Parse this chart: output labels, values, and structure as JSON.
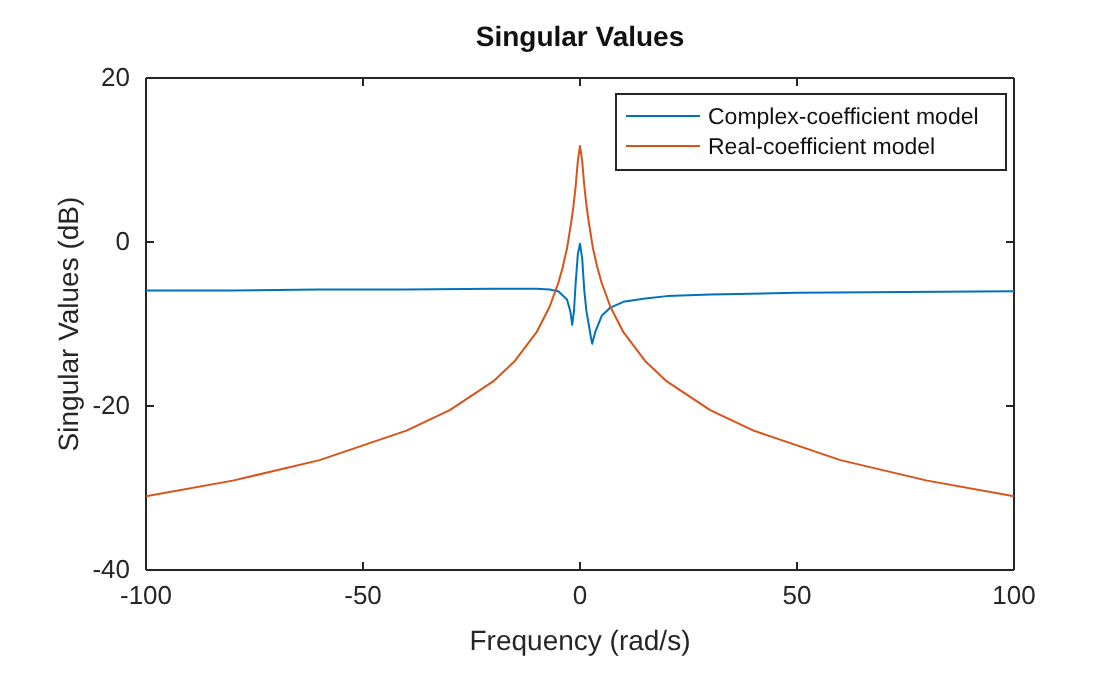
{
  "chart_data": {
    "type": "line",
    "title": "Singular Values",
    "xlabel": "Frequency (rad/s)",
    "ylabel": "Singular Values (dB)",
    "xlim": [
      -100,
      100
    ],
    "ylim": [
      -40,
      20
    ],
    "xticks": [
      -100,
      -50,
      0,
      50,
      100
    ],
    "yticks": [
      -40,
      -20,
      0,
      20
    ],
    "grid": false,
    "legend": "top right",
    "series": [
      {
        "name": "Complex-coefficient model",
        "color": "#0072bd",
        "x": [
          -100,
          -80,
          -60,
          -40,
          -20,
          -10,
          -7,
          -5,
          -3,
          -2.2,
          -1.8,
          -1.4,
          -1,
          -0.5,
          0,
          0.5,
          1,
          1.5,
          2,
          2.5,
          2.8,
          3.5,
          5,
          7,
          10,
          15,
          20,
          30,
          50,
          75,
          100
        ],
        "values": [
          -5.9,
          -5.9,
          -5.8,
          -5.8,
          -5.7,
          -5.7,
          -5.8,
          -6.0,
          -7.0,
          -8.5,
          -10.1,
          -8.5,
          -5.0,
          -1.5,
          -0.2,
          -2.0,
          -6.0,
          -8.5,
          -10.0,
          -11.6,
          -12.4,
          -11.0,
          -9.0,
          -8.0,
          -7.3,
          -6.9,
          -6.6,
          -6.4,
          -6.2,
          -6.1,
          -6.0
        ]
      },
      {
        "name": "Real-coefficient model",
        "color": "#d95319",
        "x": [
          -100,
          -80,
          -60,
          -40,
          -30,
          -20,
          -15,
          -10,
          -7,
          -5,
          -4,
          -3,
          -2,
          -1.5,
          -1,
          -0.5,
          0,
          0.5,
          1,
          1.5,
          2,
          3,
          4,
          5,
          7,
          10,
          15,
          20,
          30,
          40,
          60,
          80,
          100
        ],
        "values": [
          -31.0,
          -29.1,
          -26.6,
          -23.0,
          -20.5,
          -17.0,
          -14.5,
          -11.0,
          -7.9,
          -5.0,
          -3.1,
          -0.8,
          2.5,
          4.4,
          6.8,
          9.9,
          11.7,
          9.9,
          6.8,
          4.4,
          2.5,
          -0.8,
          -3.1,
          -5.0,
          -7.9,
          -11.0,
          -14.5,
          -17.0,
          -20.5,
          -23.0,
          -26.6,
          -29.1,
          -31.0
        ]
      }
    ]
  }
}
